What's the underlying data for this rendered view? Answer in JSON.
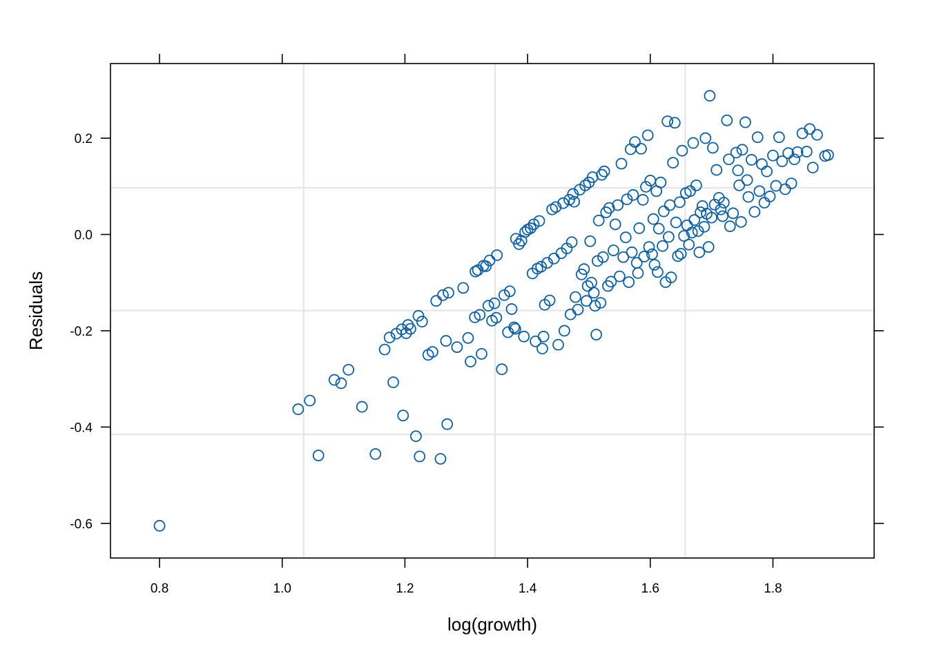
{
  "chart_data": {
    "type": "scatter",
    "title": "",
    "xlabel": "log(growth)",
    "ylabel": "Residuals",
    "xlim": [
      0.72,
      1.965
    ],
    "ylim": [
      -0.672,
      0.355
    ],
    "xticks": [
      0.8,
      1.0,
      1.2,
      1.4,
      1.6,
      1.8
    ],
    "xtick_labels": [
      "0.8",
      "1.0",
      "1.2",
      "1.4",
      "1.6",
      "1.8"
    ],
    "yticks": [
      -0.6,
      -0.4,
      -0.2,
      0.0,
      0.2
    ],
    "ytick_labels": [
      "-0.6",
      "-0.4",
      "-0.2",
      "0.0",
      "0.2"
    ],
    "reference_lines": {
      "x": [
        1.035,
        1.347,
        1.657
      ],
      "y": [
        -0.415,
        -0.158,
        0.097
      ]
    },
    "grid": false,
    "legend": "none",
    "marker": "open circle",
    "point_color": "#0a5fa6",
    "reference_line_color": "#e4e4e4",
    "points": [
      [
        0.8,
        -0.605
      ],
      [
        1.026,
        -0.363
      ],
      [
        1.045,
        -0.345
      ],
      [
        1.059,
        -0.459
      ],
      [
        1.085,
        -0.302
      ],
      [
        1.096,
        -0.309
      ],
      [
        1.108,
        -0.281
      ],
      [
        1.13,
        -0.358
      ],
      [
        1.152,
        -0.456
      ],
      [
        1.167,
        -0.239
      ],
      [
        1.175,
        -0.214
      ],
      [
        1.181,
        -0.307
      ],
      [
        1.186,
        -0.206
      ],
      [
        1.195,
        -0.197
      ],
      [
        1.197,
        -0.376
      ],
      [
        1.202,
        -0.205
      ],
      [
        1.205,
        -0.188
      ],
      [
        1.209,
        -0.196
      ],
      [
        1.218,
        -0.419
      ],
      [
        1.222,
        -0.169
      ],
      [
        1.224,
        -0.461
      ],
      [
        1.228,
        -0.181
      ],
      [
        1.238,
        -0.25
      ],
      [
        1.245,
        -0.244
      ],
      [
        1.251,
        -0.138
      ],
      [
        1.258,
        -0.466
      ],
      [
        1.262,
        -0.126
      ],
      [
        1.267,
        -0.221
      ],
      [
        1.269,
        -0.394
      ],
      [
        1.271,
        -0.121
      ],
      [
        1.285,
        -0.234
      ],
      [
        1.295,
        -0.111
      ],
      [
        1.303,
        -0.215
      ],
      [
        1.307,
        -0.264
      ],
      [
        1.314,
        -0.172
      ],
      [
        1.315,
        -0.077
      ],
      [
        1.319,
        -0.074
      ],
      [
        1.322,
        -0.167
      ],
      [
        1.325,
        -0.248
      ],
      [
        1.328,
        -0.065
      ],
      [
        1.332,
        -0.066
      ],
      [
        1.336,
        -0.148
      ],
      [
        1.338,
        -0.054
      ],
      [
        1.342,
        -0.179
      ],
      [
        1.346,
        -0.143
      ],
      [
        1.349,
        -0.173
      ],
      [
        1.35,
        -0.043
      ],
      [
        1.358,
        -0.28
      ],
      [
        1.362,
        -0.126
      ],
      [
        1.368,
        -0.203
      ],
      [
        1.371,
        -0.118
      ],
      [
        1.374,
        -0.155
      ],
      [
        1.378,
        -0.193
      ],
      [
        1.38,
        -0.196
      ],
      [
        1.381,
        -0.009
      ],
      [
        1.386,
        -0.02
      ],
      [
        1.39,
        -0.013
      ],
      [
        1.394,
        -0.212
      ],
      [
        1.396,
        0.005
      ],
      [
        1.4,
        0.01
      ],
      [
        1.405,
        0.013
      ],
      [
        1.408,
        -0.081
      ],
      [
        1.41,
        0.021
      ],
      [
        1.413,
        -0.222
      ],
      [
        1.416,
        -0.071
      ],
      [
        1.419,
        0.028
      ],
      [
        1.422,
        -0.067
      ],
      [
        1.424,
        -0.237
      ],
      [
        1.426,
        -0.212
      ],
      [
        1.428,
        -0.146
      ],
      [
        1.432,
        -0.059
      ],
      [
        1.436,
        -0.137
      ],
      [
        1.44,
        0.052
      ],
      [
        1.443,
        -0.05
      ],
      [
        1.446,
        0.057
      ],
      [
        1.45,
        -0.229
      ],
      [
        1.455,
        -0.039
      ],
      [
        1.458,
        0.065
      ],
      [
        1.46,
        -0.2
      ],
      [
        1.464,
        -0.029
      ],
      [
        1.468,
        0.072
      ],
      [
        1.47,
        -0.166
      ],
      [
        1.472,
        -0.016
      ],
      [
        1.474,
        0.084
      ],
      [
        1.476,
        0.068
      ],
      [
        1.478,
        -0.13
      ],
      [
        1.482,
        -0.156
      ],
      [
        1.485,
        0.093
      ],
      [
        1.488,
        -0.083
      ],
      [
        1.492,
        -0.072
      ],
      [
        1.494,
        0.102
      ],
      [
        1.496,
        -0.138
      ],
      [
        1.498,
        -0.107
      ],
      [
        1.5,
        0.108
      ],
      [
        1.502,
        -0.014
      ],
      [
        1.504,
        -0.1
      ],
      [
        1.506,
        0.119
      ],
      [
        1.508,
        -0.121
      ],
      [
        1.51,
        -0.148
      ],
      [
        1.512,
        -0.208
      ],
      [
        1.514,
        -0.055
      ],
      [
        1.516,
        0.029
      ],
      [
        1.519,
        -0.142
      ],
      [
        1.521,
        0.124
      ],
      [
        1.523,
        -0.047
      ],
      [
        1.525,
        0.131
      ],
      [
        1.528,
        0.046
      ],
      [
        1.531,
        -0.107
      ],
      [
        1.533,
        0.055
      ],
      [
        1.536,
        -0.098
      ],
      [
        1.54,
        -0.033
      ],
      [
        1.543,
        0.021
      ],
      [
        1.547,
        0.061
      ],
      [
        1.55,
        -0.087
      ],
      [
        1.553,
        0.147
      ],
      [
        1.556,
        -0.047
      ],
      [
        1.56,
        -0.006
      ],
      [
        1.562,
        0.073
      ],
      [
        1.565,
        -0.099
      ],
      [
        1.568,
        0.177
      ],
      [
        1.57,
        -0.037
      ],
      [
        1.572,
        0.082
      ],
      [
        1.575,
        0.192
      ],
      [
        1.578,
        -0.059
      ],
      [
        1.58,
        -0.08
      ],
      [
        1.582,
        0.013
      ],
      [
        1.585,
        0.178
      ],
      [
        1.588,
        0.072
      ],
      [
        1.59,
        -0.046
      ],
      [
        1.593,
        0.099
      ],
      [
        1.596,
        0.206
      ],
      [
        1.598,
        -0.026
      ],
      [
        1.6,
        0.112
      ],
      [
        1.603,
        -0.041
      ],
      [
        1.605,
        0.032
      ],
      [
        1.607,
        -0.063
      ],
      [
        1.61,
        0.09
      ],
      [
        1.612,
        -0.078
      ],
      [
        1.614,
        0.012
      ],
      [
        1.617,
        0.108
      ],
      [
        1.62,
        -0.024
      ],
      [
        1.622,
        0.048
      ],
      [
        1.625,
        -0.099
      ],
      [
        1.628,
        0.235
      ],
      [
        1.63,
        -0.005
      ],
      [
        1.632,
        0.061
      ],
      [
        1.634,
        -0.089
      ],
      [
        1.637,
        0.149
      ],
      [
        1.64,
        0.232
      ],
      [
        1.642,
        0.025
      ],
      [
        1.645,
        -0.045
      ],
      [
        1.648,
        0.067
      ],
      [
        1.65,
        -0.04
      ],
      [
        1.652,
        0.174
      ],
      [
        1.655,
        -0.003
      ],
      [
        1.658,
        0.086
      ],
      [
        1.66,
        0.019
      ],
      [
        1.663,
        -0.021
      ],
      [
        1.665,
        0.09
      ],
      [
        1.668,
        0.004
      ],
      [
        1.67,
        0.19
      ],
      [
        1.672,
        0.03
      ],
      [
        1.675,
        0.102
      ],
      [
        1.678,
        0.007
      ],
      [
        1.68,
        -0.037
      ],
      [
        1.682,
        0.046
      ],
      [
        1.685,
        0.059
      ],
      [
        1.688,
        0.016
      ],
      [
        1.69,
        0.2
      ],
      [
        1.692,
        0.043
      ],
      [
        1.695,
        -0.026
      ],
      [
        1.697,
        0.288
      ],
      [
        1.7,
        0.035
      ],
      [
        1.702,
        0.18
      ],
      [
        1.705,
        0.062
      ],
      [
        1.708,
        0.134
      ],
      [
        1.712,
        0.076
      ],
      [
        1.715,
        0.052
      ],
      [
        1.718,
        0.038
      ],
      [
        1.72,
        0.066
      ],
      [
        1.725,
        0.237
      ],
      [
        1.728,
        0.156
      ],
      [
        1.73,
        0.017
      ],
      [
        1.735,
        0.044
      ],
      [
        1.74,
        0.17
      ],
      [
        1.743,
        0.133
      ],
      [
        1.745,
        0.102
      ],
      [
        1.748,
        0.026
      ],
      [
        1.75,
        0.176
      ],
      [
        1.755,
        0.233
      ],
      [
        1.758,
        0.113
      ],
      [
        1.76,
        0.078
      ],
      [
        1.765,
        0.155
      ],
      [
        1.77,
        0.047
      ],
      [
        1.775,
        0.202
      ],
      [
        1.778,
        0.09
      ],
      [
        1.782,
        0.146
      ],
      [
        1.786,
        0.066
      ],
      [
        1.79,
        0.131
      ],
      [
        1.795,
        0.079
      ],
      [
        1.8,
        0.164
      ],
      [
        1.805,
        0.101
      ],
      [
        1.81,
        0.202
      ],
      [
        1.815,
        0.152
      ],
      [
        1.82,
        0.094
      ],
      [
        1.825,
        0.169
      ],
      [
        1.83,
        0.106
      ],
      [
        1.835,
        0.156
      ],
      [
        1.84,
        0.171
      ],
      [
        1.848,
        0.21
      ],
      [
        1.855,
        0.172
      ],
      [
        1.86,
        0.219
      ],
      [
        1.865,
        0.139
      ],
      [
        1.872,
        0.207
      ],
      [
        1.885,
        0.163
      ],
      [
        1.89,
        0.165
      ]
    ]
  }
}
